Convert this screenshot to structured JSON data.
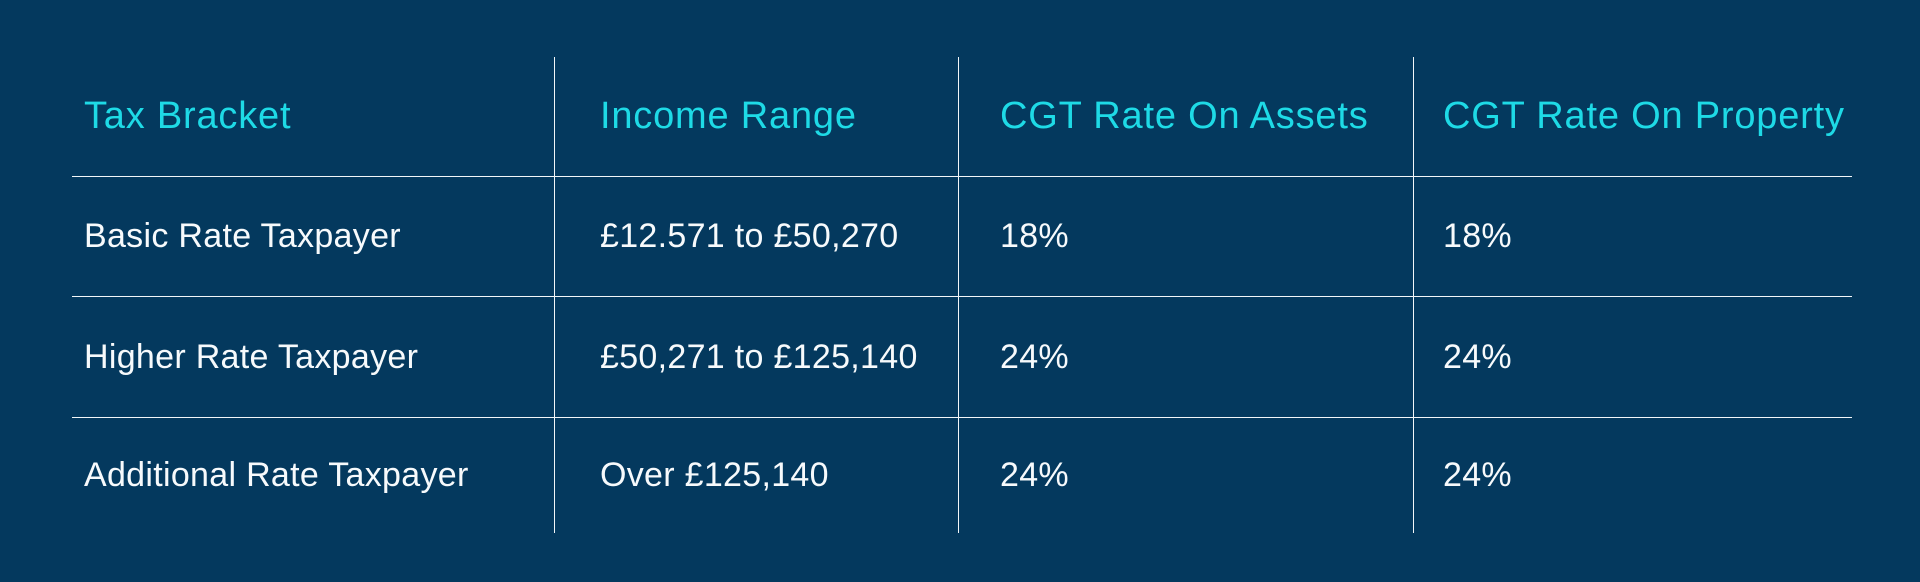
{
  "page": {
    "background_color": "#04395E",
    "header_text_color": "#1EDAE6",
    "body_text_color": "#F7FAFC",
    "grid_line_color": "#F2F6F8"
  },
  "chart_data": {
    "type": "table",
    "title": "",
    "columns": [
      "Tax Bracket",
      "Income Range",
      "CGT Rate On Assets",
      "CGT Rate On Property"
    ],
    "rows": [
      {
        "cells": [
          "Basic Rate Taxpayer",
          "£12.571 to £50,270",
          "18%",
          "18%"
        ]
      },
      {
        "cells": [
          "Higher Rate Taxpayer",
          "£50,271 to £125,140",
          "24%",
          "24%"
        ]
      },
      {
        "cells": [
          "Additional Rate Taxpayer",
          "Over £125,140",
          "24%",
          "24%"
        ]
      }
    ],
    "layout": {
      "grid": "horizontal rules between rows, vertical dividers between columns, no outer border",
      "legend_position": "none"
    }
  }
}
